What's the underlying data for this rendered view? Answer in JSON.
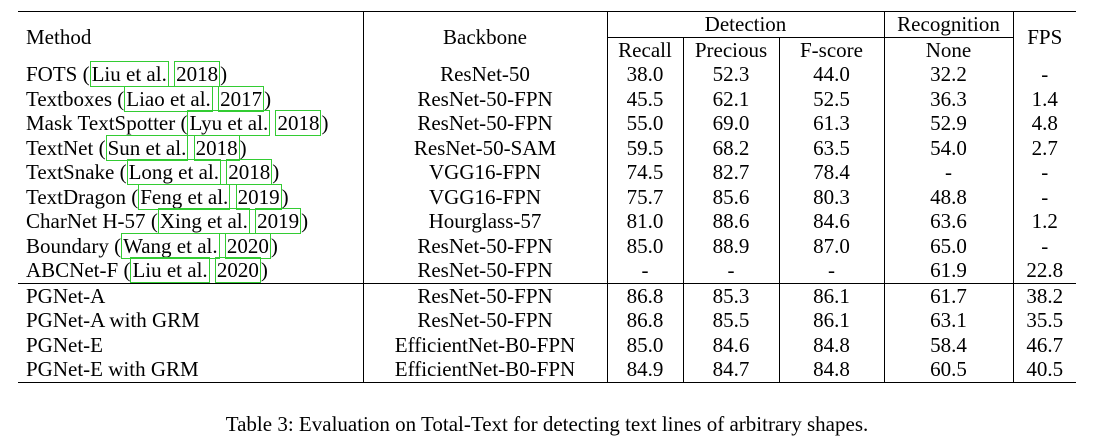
{
  "table": {
    "headers": {
      "method": "Method",
      "backbone": "Backbone",
      "detection": "Detection",
      "recall": "Recall",
      "precious": "Precious",
      "fscore": "F-score",
      "recognition": "Recognition",
      "none": "None",
      "fps": "FPS"
    },
    "rows": [
      {
        "name": "FOTS",
        "cite_author": "Liu et al.",
        "cite_year": "2018",
        "backbone": "ResNet-50",
        "recall": "38.0",
        "precious": "52.3",
        "fscore": "44.0",
        "none": "32.2",
        "fps": "-"
      },
      {
        "name": "Textboxes",
        "cite_author": "Liao et al.",
        "cite_year": "2017",
        "backbone": "ResNet-50-FPN",
        "recall": "45.5",
        "precious": "62.1",
        "fscore": "52.5",
        "none": "36.3",
        "fps": "1.4"
      },
      {
        "name": "Mask TextSpotter",
        "cite_author": "Lyu et al.",
        "cite_year": "2018",
        "backbone": "ResNet-50-FPN",
        "recall": "55.0",
        "precious": "69.0",
        "fscore": "61.3",
        "none": "52.9",
        "fps": "4.8"
      },
      {
        "name": "TextNet",
        "cite_author": "Sun et al.",
        "cite_year": "2018",
        "backbone": "ResNet-50-SAM",
        "recall": "59.5",
        "precious": "68.2",
        "fscore": "63.5",
        "none": "54.0",
        "fps": "2.7"
      },
      {
        "name": "TextSnake",
        "cite_author": "Long et al.",
        "cite_year": "2018",
        "backbone": "VGG16-FPN",
        "recall": "74.5",
        "precious": "82.7",
        "fscore": "78.4",
        "none": "-",
        "fps": "-"
      },
      {
        "name": "TextDragon",
        "cite_author": "Feng et al.",
        "cite_year": "2019",
        "backbone": "VGG16-FPN",
        "recall": "75.7",
        "precious": "85.6",
        "fscore": "80.3",
        "none": "48.8",
        "fps": "-"
      },
      {
        "name": "CharNet H-57",
        "cite_author": "Xing et al.",
        "cite_year": "2019",
        "backbone": "Hourglass-57",
        "recall": "81.0",
        "precious": "88.6",
        "fscore": "84.6",
        "none": "63.6",
        "fps": "1.2"
      },
      {
        "name": "Boundary",
        "cite_author": "Wang et al.",
        "cite_year": "2020",
        "backbone": "ResNet-50-FPN",
        "recall": "85.0",
        "precious": "88.9",
        "fscore": "87.0",
        "none": "65.0",
        "fps": "-"
      },
      {
        "name": "ABCNet-F",
        "cite_author": "Liu et al.",
        "cite_year": "2020",
        "backbone": "ResNet-50-FPN",
        "recall": "-",
        "precious": "-",
        "fscore": "-",
        "none": "61.9",
        "fps": "22.8"
      },
      {
        "name": "PGNet-A",
        "backbone": "ResNet-50-FPN",
        "recall": "86.8",
        "precious": "85.3",
        "fscore": "86.1",
        "none": "61.7",
        "fps": "38.2"
      },
      {
        "name": "PGNet-A with GRM",
        "backbone": "ResNet-50-FPN",
        "recall": "86.8",
        "precious": "85.5",
        "fscore": "86.1",
        "none": "63.1",
        "fps": "35.5"
      },
      {
        "name": "PGNet-E",
        "backbone": "EfficientNet-B0-FPN",
        "recall": "85.0",
        "precious": "84.6",
        "fscore": "84.8",
        "none": "58.4",
        "fps": "46.7"
      },
      {
        "name": "PGNet-E with GRM",
        "backbone": "EfficientNet-B0-FPN",
        "recall": "84.9",
        "precious": "84.7",
        "fscore": "84.8",
        "none": "60.5",
        "fps": "40.5"
      }
    ]
  },
  "caption": "Table 3: Evaluation on Total-Text for detecting text lines of arbitrary shapes."
}
